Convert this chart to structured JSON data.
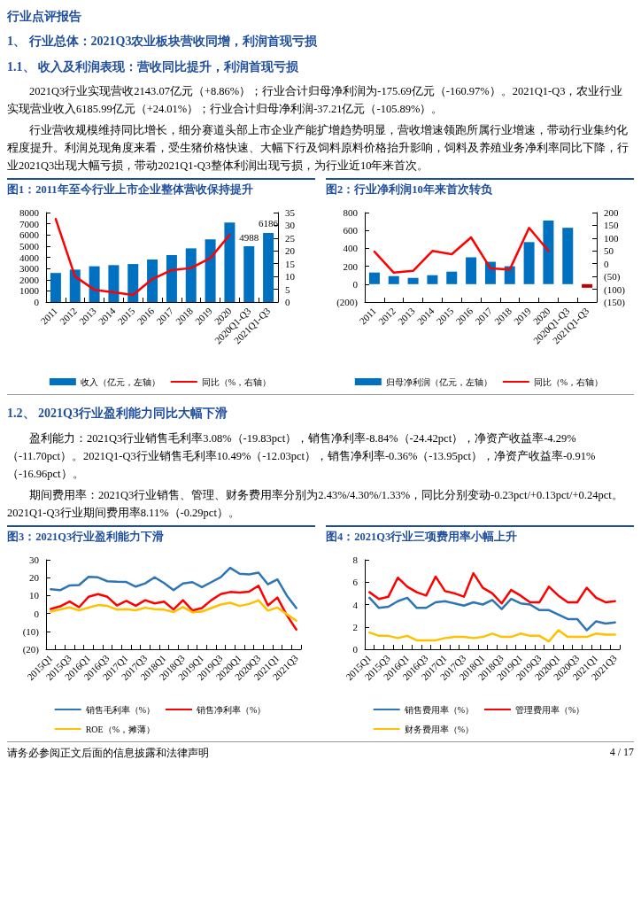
{
  "chart_data": [
    {
      "type": "bar",
      "title": "图1：2011年至今行业上市企业整体营收保持提升",
      "annotations": [
        "行业点评报告",
        "1、 行业总体：2021Q3农业板块营收同增，利润首现亏损",
        "1.1、 收入及利润表现：营收同比提升，利润首现亏损",
        "2021Q3行业实现营收2143.07亿元（+8.86%）；行业合计归母净利润为-175.69亿元（-160.97%）。2021Q1-Q3，农业行业实现营业收入6185.99亿元（+24.01%）；行业合计归母净利润-37.21亿元（-105.89%）。",
        "行业营收规模维持同比增长，细分赛道头部上市企业产能扩增趋势明显，营收增速领跑所属行业增速，带动行业集约化程度提升。利润兑现角度来看，受生猪价格快速、大幅下行及饲料原料价格抬升影响，饲料及养殖业务净利率同比下降，行业2021Q3出现大幅亏损，带动2021Q1-Q3整体利润出现亏损，为行业近10年来首次。"
      ],
      "categories": [
        "2011",
        "2012",
        "2013",
        "2014",
        "2015",
        "2016",
        "2017",
        "2018",
        "2019",
        "2020",
        "2020Q1-Q3",
        "2021Q1-Q3"
      ],
      "series": [
        {
          "name": "收入（亿元，左轴）",
          "color": "#0070c0",
          "values": [
            2600,
            2900,
            3200,
            3300,
            3400,
            3800,
            4200,
            4800,
            5600,
            7100,
            4988,
            6186
          ],
          "value_labels": [
            null,
            null,
            null,
            null,
            null,
            null,
            null,
            null,
            null,
            null,
            "4988",
            "6186"
          ]
        },
        {
          "name": "同比（%，右轴）",
          "type": "line",
          "axis": "y2",
          "color": "#ff0000",
          "values": [
            32.5,
            10,
            4.8,
            3.8,
            2.8,
            9,
            12.5,
            13.3,
            17.2,
            26.3,
            null,
            null
          ]
        }
      ],
      "ylim": [
        0,
        8000
      ],
      "yticks": [
        0,
        1000,
        2000,
        3000,
        4000,
        5000,
        6000,
        7000,
        8000
      ],
      "y2lim": [
        0,
        35
      ],
      "y2ticks": [
        0,
        5,
        10,
        15,
        20,
        25,
        30,
        35
      ],
      "legend": "bottom",
      "marker": "none"
    },
    {
      "type": "bar",
      "title": "图2：行业净利润10年来首次转负",
      "categories": [
        "2011",
        "2012",
        "2013",
        "2014",
        "2015",
        "2016",
        "2017",
        "2018",
        "2019",
        "2020",
        "2020Q1-Q3",
        "2021Q1-Q3"
      ],
      "series": [
        {
          "name": "归母净利润（亿元，左轴）",
          "color": "#0070c0",
          "colors": [
            "#0070c0",
            "#0070c0",
            "#0070c0",
            "#0070c0",
            "#0070c0",
            "#0070c0",
            "#0070c0",
            "#0070c0",
            "#0070c0",
            "#0070c0",
            "#0070c0",
            "#c00000"
          ],
          "values": [
            130,
            90,
            70,
            100,
            140,
            300,
            250,
            200,
            470,
            710,
            630,
            -40
          ]
        },
        {
          "name": "同比（%，右轴）",
          "type": "line",
          "axis": "y2",
          "color": "#ff0000",
          "values": [
            47,
            -35,
            -28,
            50,
            37,
            103,
            -18,
            -23,
            140,
            50,
            null,
            null
          ]
        }
      ],
      "ylim": [
        -200,
        800
      ],
      "yticks": [
        {
          "value": -200,
          "label": "(200)"
        },
        0,
        200,
        400,
        600,
        800
      ],
      "y2lim": [
        -150,
        200
      ],
      "y2ticks": [
        {
          "value": -150,
          "label": "(150)"
        },
        {
          "value": -100,
          "label": "(100)"
        },
        {
          "value": -50,
          "label": "(50)"
        },
        0,
        50,
        100,
        150,
        200
      ],
      "legend": "bottom",
      "marker": "none"
    },
    {
      "type": "line",
      "title": "图3：2021Q3行业盈利能力下滑",
      "annotations": [
        "1.2、 2021Q3行业盈利能力同比大幅下滑",
        "盈利能力：2021Q3行业销售毛利率3.08%（-19.83pct），销售净利率-8.84%（-24.42pct），净资产收益率-4.29%（-11.70pct）。2021Q1-Q3行业销售毛利率10.49%（-12.03pct），销售净利率-0.36%（-13.95pct），净资产收益率-0.91%（-16.96pct）。",
        "期间费用率：2021Q3行业销售、管理、财务费用率分别为2.43%/4.30%/1.33%，同比分别变动-0.23pct/+0.13pct/+0.24pct。2021Q1-Q3行业期间费用率8.11%（-0.29pct）。"
      ],
      "categories": [
        "2015Q1",
        null,
        "2015Q3",
        null,
        "2016Q1",
        null,
        "2016Q3",
        null,
        "2017Q1",
        null,
        "2017Q3",
        null,
        "2018Q1",
        null,
        "2018Q3",
        null,
        "2019Q1",
        null,
        "2019Q3",
        null,
        "2020Q1",
        null,
        "2020Q3",
        null,
        "2021Q1",
        null,
        "2021Q3"
      ],
      "series": [
        {
          "name": "销售毛利率（%）",
          "color": "#2e75b6",
          "values": [
            13.5,
            13,
            15.7,
            15.9,
            20.5,
            20.2,
            18,
            17.7,
            17.6,
            15,
            16.8,
            20.2,
            17,
            13,
            16.8,
            17.5,
            14.7,
            17.5,
            20.3,
            25.5,
            22.2,
            21.8,
            22.8,
            16.3,
            19,
            10,
            3
          ]
        },
        {
          "name": "销售净利率（%）",
          "color": "#ff0000",
          "values": [
            2.5,
            4,
            6.7,
            3.5,
            9.3,
            10.8,
            9.3,
            4.5,
            7,
            4.3,
            7.4,
            5.6,
            6.6,
            2.2,
            7.4,
            1.7,
            3,
            7.4,
            10.8,
            12,
            11.7,
            12.2,
            15.5,
            4.5,
            8.9,
            -1,
            -9
          ]
        },
        {
          "name": "ROE（%，摊薄）",
          "color": "#ffc000",
          "values": [
            1,
            2.2,
            3.4,
            1.7,
            3.3,
            4.7,
            4.2,
            2.2,
            2.4,
            1.8,
            3.2,
            2.4,
            2.1,
            0.8,
            3.6,
            0.7,
            1,
            3,
            5,
            6,
            4.2,
            5.3,
            7.3,
            1.6,
            3.3,
            -0.5,
            -4
          ]
        }
      ],
      "ylim": [
        -20,
        30
      ],
      "yticks": [
        {
          "value": -20,
          "label": "(20)"
        },
        {
          "value": -10,
          "label": "(10)"
        },
        0,
        10,
        20,
        30
      ],
      "legend": "bottom",
      "marker": "none"
    },
    {
      "type": "line",
      "title": "图4：2021Q3行业三项费用率小幅上升",
      "annotations": [
        "请务必参阅正文后面的信息披露和法律声明",
        "4 / 17"
      ],
      "categories": [
        "2015Q1",
        null,
        "2015Q3",
        null,
        "2016Q1",
        null,
        "2016Q3",
        null,
        "2017Q1",
        null,
        "2017Q3",
        null,
        "2018Q1",
        null,
        "2018Q3",
        null,
        "2019Q1",
        null,
        "2019Q3",
        null,
        "2020Q1",
        null,
        "2020Q3",
        null,
        "2021Q1",
        null,
        "2021Q3"
      ],
      "series": [
        {
          "name": "销售费用率（%）",
          "color": "#2e75b6",
          "values": [
            4.6,
            3.7,
            3.8,
            4.3,
            4.6,
            3.7,
            3.7,
            4.2,
            4.3,
            4.1,
            3.9,
            4.2,
            4.0,
            4.4,
            3.6,
            4.5,
            4.1,
            4.0,
            3.5,
            3.5,
            3.1,
            2.7,
            2.7,
            1.7,
            2.5,
            2.3,
            2.4
          ]
        },
        {
          "name": "管理费用率（%）",
          "color": "#ff0000",
          "values": [
            5.1,
            4.5,
            4.7,
            6.4,
            5.6,
            5.1,
            4.8,
            6.5,
            5.2,
            5.0,
            4.7,
            6.8,
            5.5,
            5.0,
            4.1,
            5.3,
            4.8,
            4.2,
            4.2,
            5.6,
            4.8,
            4.2,
            4.2,
            5.5,
            4.6,
            4.2,
            4.3
          ]
        },
        {
          "name": "财务费用率（%）",
          "color": "#ffc000",
          "values": [
            1.5,
            1.2,
            1.2,
            1.0,
            1.2,
            0.8,
            0.8,
            0.8,
            1.0,
            1.1,
            1.1,
            1.0,
            1.1,
            1.4,
            1.1,
            1.1,
            1.4,
            1.2,
            1.2,
            0.7,
            1.7,
            1.1,
            1.1,
            1.1,
            1.4,
            1.3,
            1.3
          ]
        }
      ],
      "ylim": [
        0,
        8
      ],
      "yticks": [
        0,
        2,
        4,
        6,
        8
      ],
      "legend": "bottom",
      "marker": "none"
    }
  ]
}
